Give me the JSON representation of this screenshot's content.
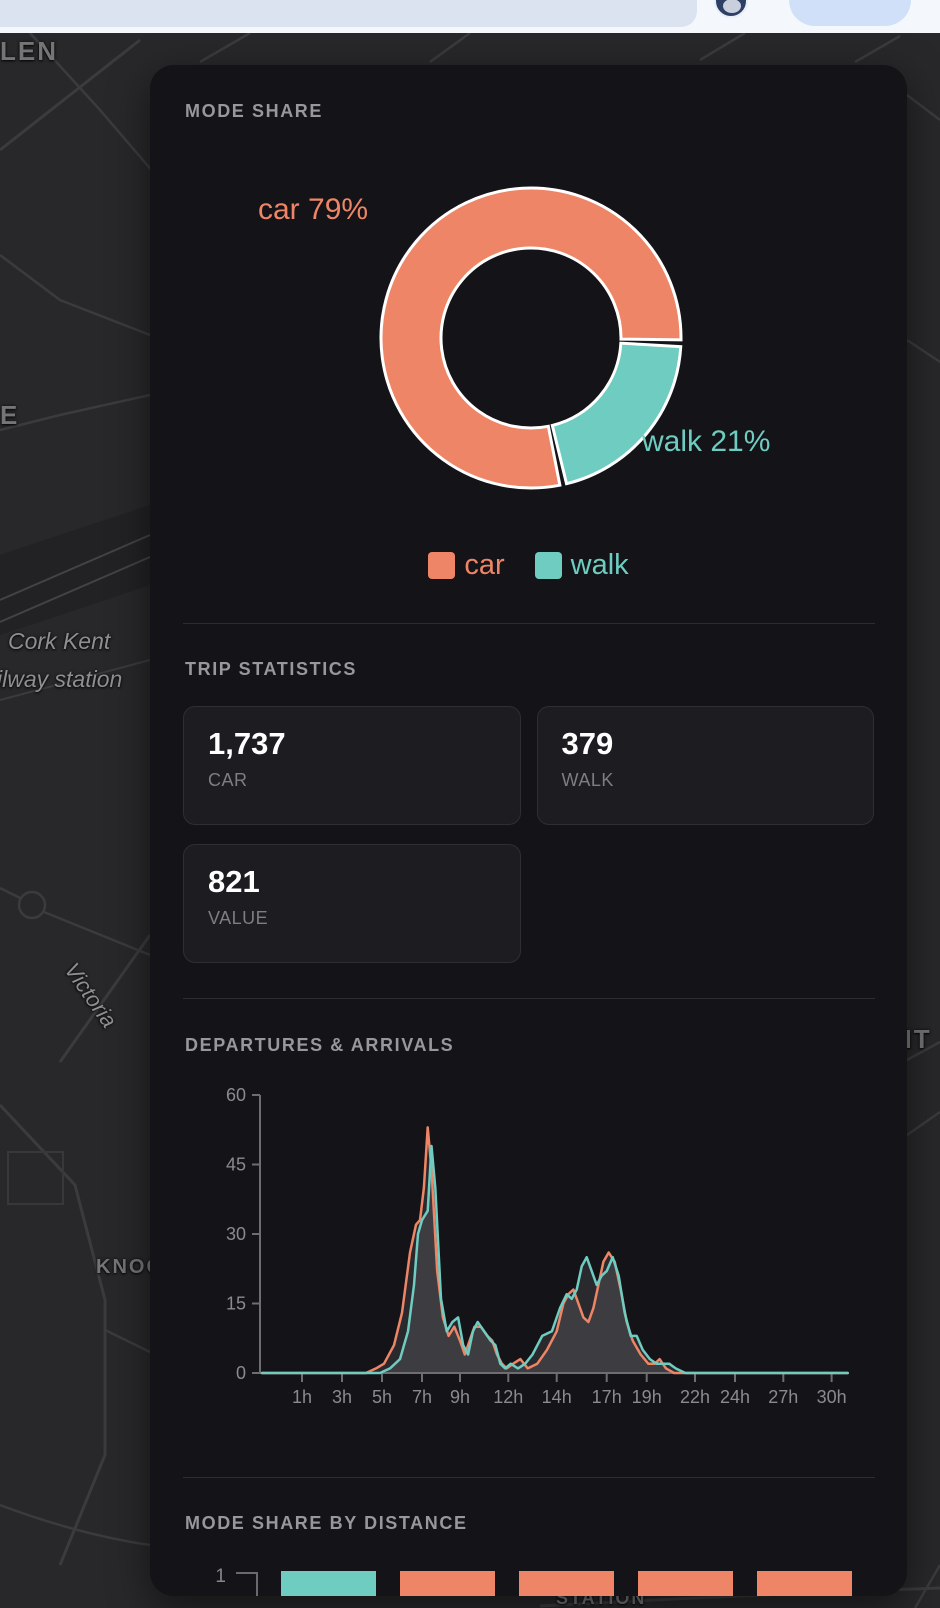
{
  "map": {
    "labels": {
      "glen": "LEN",
      "e": "E",
      "station_line1": "Cork Kent",
      "station_line2": "ilway station",
      "victoria": "Victoria",
      "knoc": "KNOC",
      "nt": "NT",
      "bottom": "STATION"
    }
  },
  "panel": {
    "mode_share_title": "MODE SHARE",
    "trip_statistics_title": "TRIP STATISTICS",
    "departures_arrivals_title": "DEPARTURES & ARRIVALS",
    "mode_share_by_distance_title": "MODE SHARE BY DISTANCE"
  },
  "trip_statistics": {
    "cards": [
      {
        "value": "1,737",
        "label": "CAR"
      },
      {
        "value": "379",
        "label": "WALK"
      },
      {
        "value": "821",
        "label": "VALUE"
      }
    ]
  },
  "colors": {
    "car": "#ee8566",
    "walk": "#6fccc0",
    "axis": "#6e6e72",
    "tick_label": "#8b8b8f",
    "area_fill": "rgba(158,158,162,0.17)"
  },
  "chart_data": [
    {
      "id": "mode_share_donut",
      "type": "pie",
      "title": "MODE SHARE",
      "donut": true,
      "slices": [
        {
          "label": "car",
          "value": 79,
          "color": "#ee8566",
          "callout": "car 79%"
        },
        {
          "label": "walk",
          "value": 21,
          "color": "#6fccc0",
          "callout": "walk 21%"
        }
      ],
      "legend": [
        "car",
        "walk"
      ],
      "legend_position": "bottom"
    },
    {
      "id": "departures_arrivals",
      "type": "line",
      "title": "DEPARTURES & ARRIVALS",
      "x_tick_labels": [
        "1h",
        "3h",
        "5h",
        "7h",
        "9h",
        "12h",
        "14h",
        "17h",
        "19h",
        "22h",
        "24h",
        "27h",
        "30h"
      ],
      "x_tick_hours": [
        1,
        3,
        5,
        7,
        9,
        12,
        14,
        17,
        19,
        22,
        24,
        27,
        30
      ],
      "y_ticks": [
        0,
        15,
        30,
        45,
        60
      ],
      "ylim": [
        0,
        60
      ],
      "grid": false,
      "series": [
        {
          "name": "car",
          "color": "#ee8566",
          "points": [
            [
              -1,
              0
            ],
            [
              4.2,
              0
            ],
            [
              4.7,
              1
            ],
            [
              5.1,
              2
            ],
            [
              5.6,
              6
            ],
            [
              6.0,
              13
            ],
            [
              6.4,
              26
            ],
            [
              6.7,
              32
            ],
            [
              6.9,
              33
            ],
            [
              7.1,
              40
            ],
            [
              7.3,
              53
            ],
            [
              7.5,
              44
            ],
            [
              7.8,
              22
            ],
            [
              8.1,
              12
            ],
            [
              8.4,
              8
            ],
            [
              8.7,
              10
            ],
            [
              9.0,
              7
            ],
            [
              9.3,
              4
            ],
            [
              9.6,
              7
            ],
            [
              9.9,
              10
            ],
            [
              10.3,
              10
            ],
            [
              10.7,
              8
            ],
            [
              11.0,
              7
            ],
            [
              11.3,
              4
            ],
            [
              11.6,
              2
            ],
            [
              11.9,
              1
            ],
            [
              12.2,
              2
            ],
            [
              12.5,
              3
            ],
            [
              12.8,
              1
            ],
            [
              13.2,
              2
            ],
            [
              13.6,
              5
            ],
            [
              14.0,
              9
            ],
            [
              14.4,
              15
            ],
            [
              14.7,
              17
            ],
            [
              15.0,
              18
            ],
            [
              15.3,
              15
            ],
            [
              15.6,
              12
            ],
            [
              15.9,
              11
            ],
            [
              16.2,
              14
            ],
            [
              16.5,
              19
            ],
            [
              16.8,
              24
            ],
            [
              17.1,
              26
            ],
            [
              17.4,
              24
            ],
            [
              17.7,
              18
            ],
            [
              18.0,
              11
            ],
            [
              18.3,
              7
            ],
            [
              18.7,
              4
            ],
            [
              19.1,
              2
            ],
            [
              19.5,
              2
            ],
            [
              19.8,
              3
            ],
            [
              20.2,
              1
            ],
            [
              20.7,
              0
            ],
            [
              31,
              0
            ]
          ]
        },
        {
          "name": "walk",
          "color": "#6fccc0",
          "points": [
            [
              -1,
              0
            ],
            [
              4.9,
              0
            ],
            [
              5.4,
              1
            ],
            [
              5.9,
              3
            ],
            [
              6.3,
              9
            ],
            [
              6.6,
              19
            ],
            [
              6.8,
              30
            ],
            [
              7.0,
              33
            ],
            [
              7.3,
              35
            ],
            [
              7.5,
              49
            ],
            [
              7.7,
              40
            ],
            [
              8.0,
              16
            ],
            [
              8.3,
              9
            ],
            [
              8.6,
              11
            ],
            [
              8.9,
              12
            ],
            [
              9.2,
              6
            ],
            [
              9.5,
              4
            ],
            [
              9.8,
              9
            ],
            [
              10.1,
              11
            ],
            [
              10.5,
              9
            ],
            [
              10.9,
              7
            ],
            [
              11.2,
              6
            ],
            [
              11.5,
              2
            ],
            [
              11.8,
              1
            ],
            [
              12.1,
              2
            ],
            [
              12.4,
              1
            ],
            [
              12.7,
              2
            ],
            [
              13.0,
              4
            ],
            [
              13.4,
              8
            ],
            [
              13.8,
              9
            ],
            [
              14.2,
              14
            ],
            [
              14.6,
              17
            ],
            [
              14.9,
              16
            ],
            [
              15.2,
              18
            ],
            [
              15.5,
              23
            ],
            [
              15.8,
              25
            ],
            [
              16.1,
              22
            ],
            [
              16.4,
              19
            ],
            [
              16.7,
              21
            ],
            [
              17.0,
              22
            ],
            [
              17.3,
              25
            ],
            [
              17.6,
              21
            ],
            [
              17.9,
              13
            ],
            [
              18.2,
              8
            ],
            [
              18.5,
              8
            ],
            [
              18.8,
              5
            ],
            [
              19.2,
              3
            ],
            [
              19.6,
              2
            ],
            [
              20.0,
              2
            ],
            [
              20.4,
              2
            ],
            [
              20.8,
              1
            ],
            [
              21.4,
              0
            ],
            [
              31,
              0
            ]
          ]
        }
      ]
    },
    {
      "id": "mode_share_by_distance",
      "type": "bar",
      "title": "MODE SHARE BY DISTANCE",
      "visible_y_tick": "1",
      "bars": [
        {
          "mode": "walk",
          "color": "#6fccc0"
        },
        {
          "mode": "car",
          "color": "#ee8566"
        },
        {
          "mode": "car",
          "color": "#ee8566"
        },
        {
          "mode": "car",
          "color": "#ee8566"
        },
        {
          "mode": "car",
          "color": "#ee8566"
        }
      ]
    }
  ]
}
